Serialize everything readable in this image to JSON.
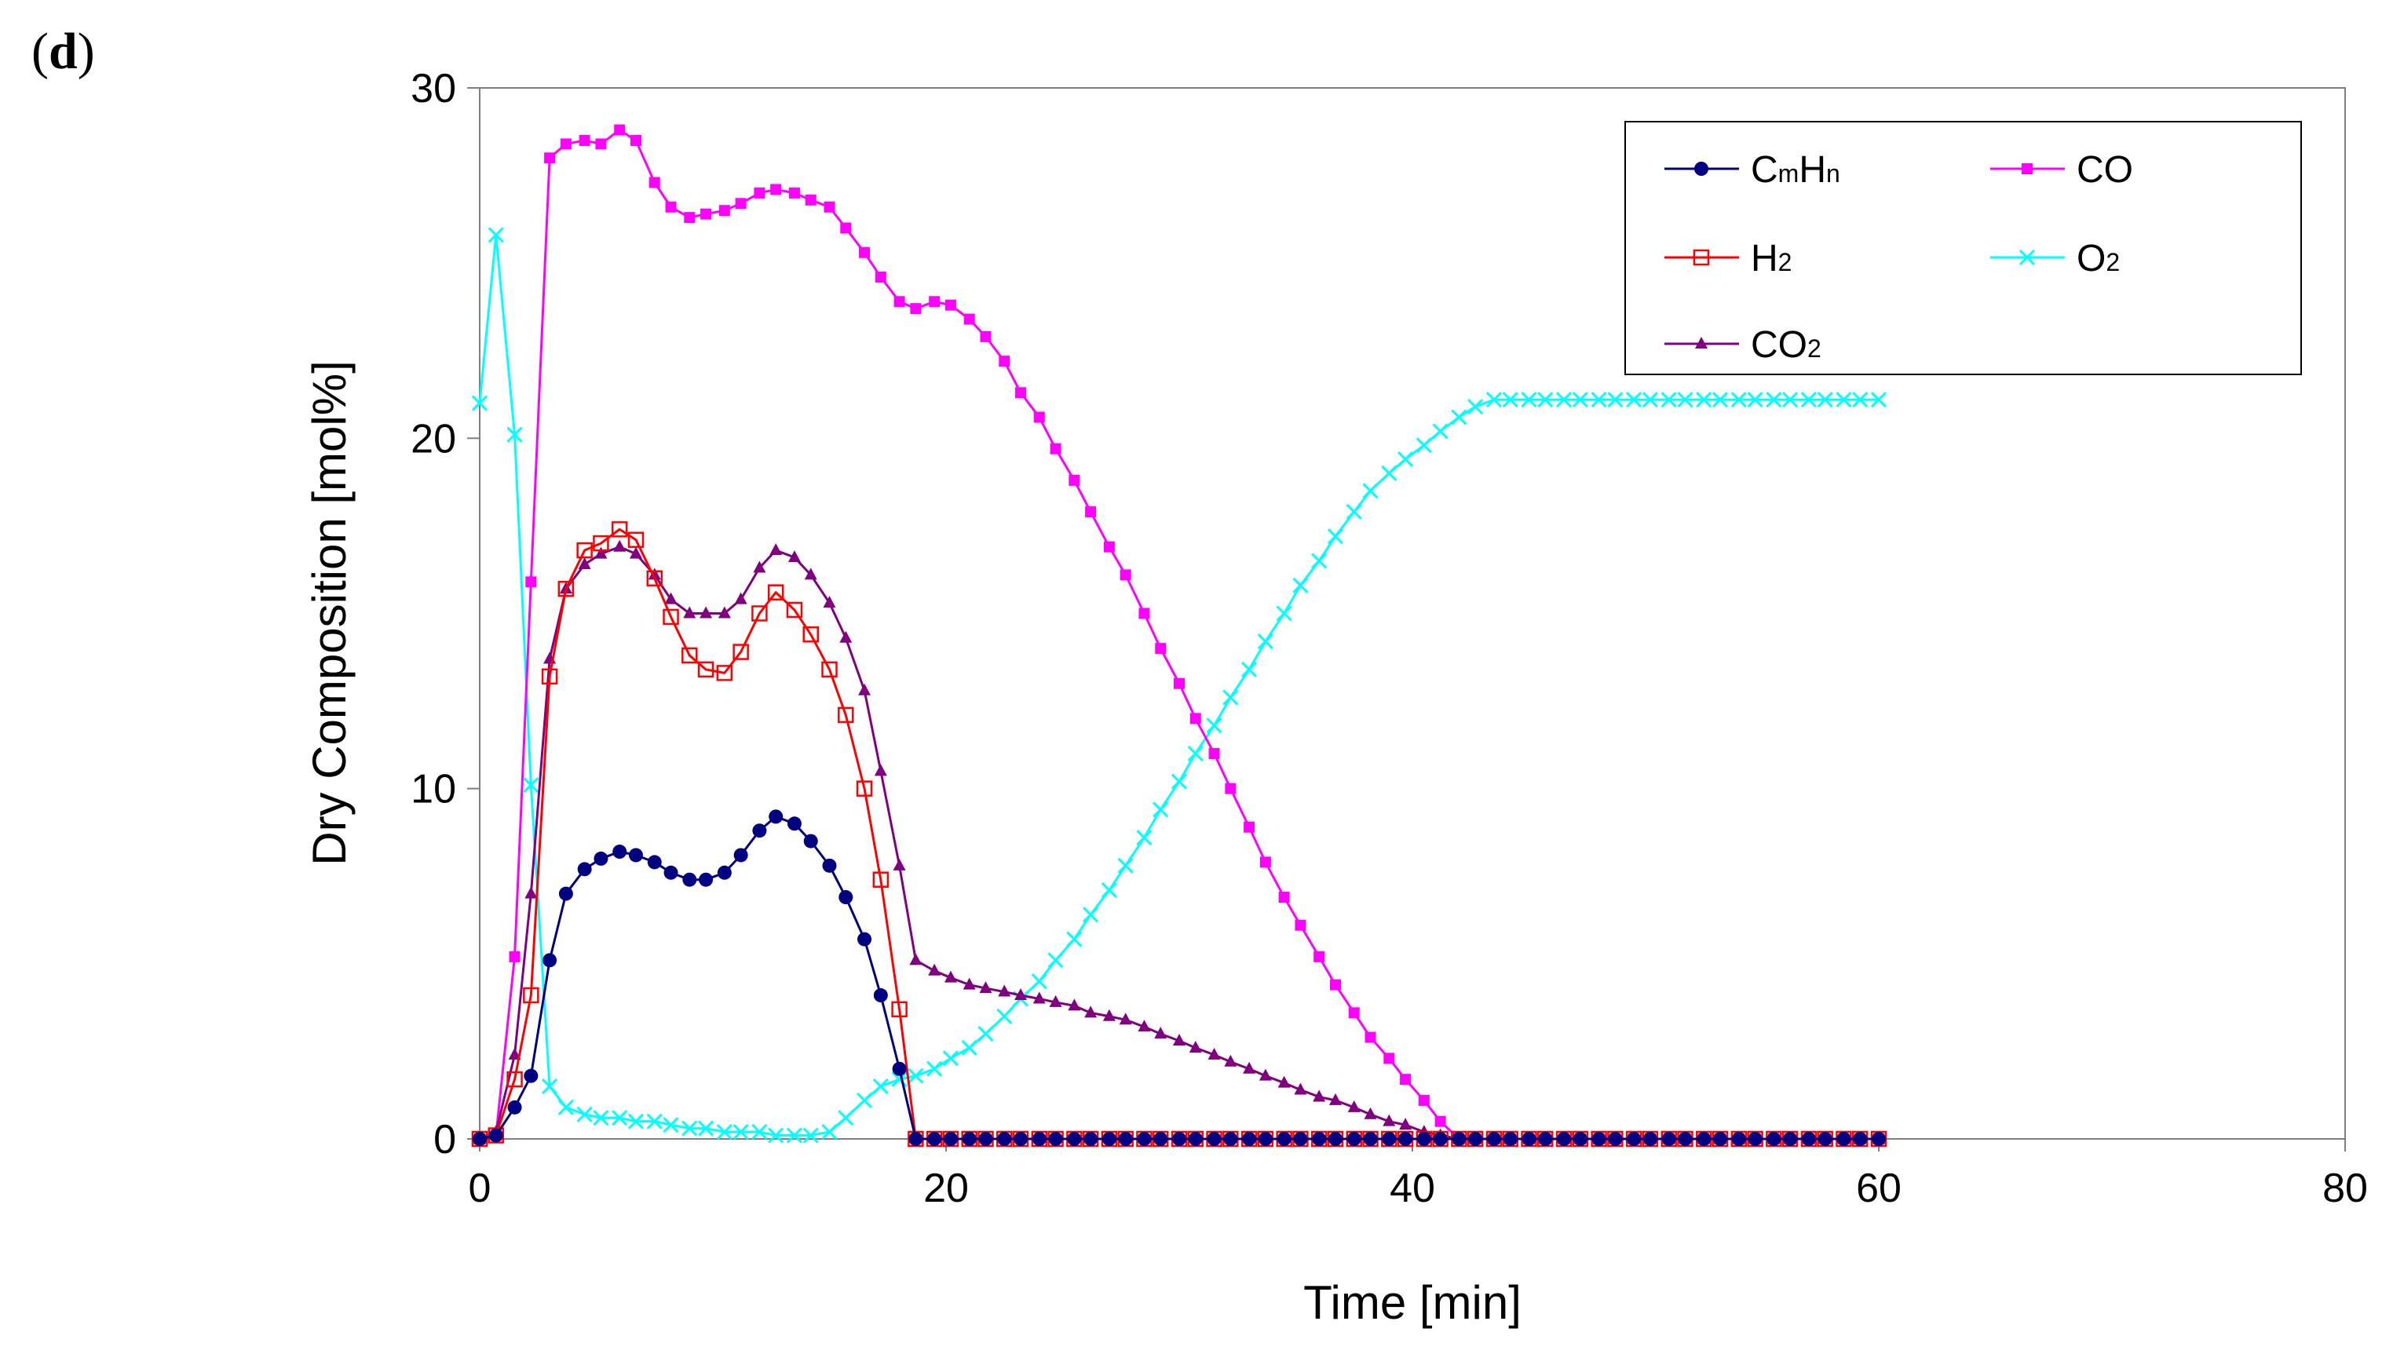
{
  "panel_label": {
    "open": "(",
    "letter": "d",
    "close": ")"
  },
  "chart_data": {
    "type": "line",
    "title": "",
    "xlabel": "Time [min]",
    "ylabel": "Dry Composition [mol%]",
    "xlim": [
      0,
      80
    ],
    "ylim": [
      0,
      30
    ],
    "xticks": [
      0,
      20,
      40,
      60,
      80
    ],
    "yticks": [
      0,
      10,
      20,
      30
    ],
    "x_tick_labels": [
      "0",
      "20",
      "40",
      "60",
      "80"
    ],
    "y_tick_labels": [
      "0",
      "10",
      "20",
      "30"
    ],
    "legend_position": "top-right",
    "grid": false,
    "series": [
      {
        "key": "cmhn",
        "name": "CmHn",
        "label_parts": [
          {
            "t": "C"
          },
          {
            "t": "m",
            "sub": true
          },
          {
            "t": "H"
          },
          {
            "t": "n",
            "sub": true
          }
        ],
        "color": "#000080",
        "marker": "circle",
        "x": [
          0,
          0.7,
          1.5,
          2.2,
          3,
          3.7,
          4.5,
          5.2,
          6,
          6.7,
          7.5,
          8.2,
          9,
          9.7,
          10.5,
          11.2,
          12,
          12.7,
          13.5,
          14.2,
          15,
          15.7,
          16.5,
          17.2,
          18,
          18.7,
          19.5,
          20.2,
          21,
          21.7,
          22.5,
          23.2,
          24,
          24.7,
          25.5,
          26.2,
          27,
          27.7,
          28.5,
          29.2,
          30,
          30.7,
          31.5,
          32.2,
          33,
          33.7,
          34.5,
          35.2,
          36,
          36.7,
          37.5,
          38.2,
          39,
          39.7,
          40.5,
          41.2,
          42,
          42.7,
          43.5,
          44.2,
          45,
          45.7,
          46.5,
          47.2,
          48,
          48.7,
          49.5,
          50.2,
          51,
          51.7,
          52.5,
          53.2,
          54,
          54.7,
          55.5,
          56.2,
          57,
          57.7,
          58.5,
          59.2,
          60
        ],
        "y": [
          0,
          0.1,
          0.9,
          1.8,
          5.1,
          7.0,
          7.7,
          8.0,
          8.2,
          8.1,
          7.9,
          7.6,
          7.4,
          7.4,
          7.6,
          8.1,
          8.8,
          9.2,
          9.0,
          8.5,
          7.8,
          6.9,
          5.7,
          4.1,
          2.0,
          0,
          0,
          0,
          0,
          0,
          0,
          0,
          0,
          0,
          0,
          0,
          0,
          0,
          0,
          0,
          0,
          0,
          0,
          0,
          0,
          0,
          0,
          0,
          0,
          0,
          0,
          0,
          0,
          0,
          0,
          0,
          0,
          0,
          0,
          0,
          0,
          0,
          0,
          0,
          0,
          0,
          0,
          0,
          0,
          0,
          0,
          0,
          0,
          0,
          0,
          0,
          0,
          0,
          0,
          0,
          0
        ]
      },
      {
        "key": "h2",
        "name": "H2",
        "label_parts": [
          {
            "t": "H"
          },
          {
            "t": "2",
            "sub": true
          }
        ],
        "color": "#ff0000",
        "marker": "open-square",
        "x": [
          0,
          0.7,
          1.5,
          2.2,
          3,
          3.7,
          4.5,
          5.2,
          6,
          6.7,
          7.5,
          8.2,
          9,
          9.7,
          10.5,
          11.2,
          12,
          12.7,
          13.5,
          14.2,
          15,
          15.7,
          16.5,
          17.2,
          18,
          18.7,
          19.5,
          20.2,
          21,
          21.7,
          22.5,
          23.2,
          24,
          24.7,
          25.5,
          26.2,
          27,
          27.7,
          28.5,
          29.2,
          30,
          30.7,
          31.5,
          32.2,
          33,
          33.7,
          34.5,
          35.2,
          36,
          36.7,
          37.5,
          38.2,
          39,
          39.7,
          40.5,
          41.2,
          42,
          42.7,
          43.5,
          44.2,
          45,
          45.7,
          46.5,
          47.2,
          48,
          48.7,
          49.5,
          50.2,
          51,
          51.7,
          52.5,
          53.2,
          54,
          54.7,
          55.5,
          56.2,
          57,
          57.7,
          58.5,
          59.2,
          60
        ],
        "y": [
          0,
          0.1,
          1.7,
          4.1,
          13.2,
          15.7,
          16.8,
          17.0,
          17.4,
          17.1,
          16.0,
          14.9,
          13.8,
          13.4,
          13.3,
          13.9,
          15.0,
          15.6,
          15.1,
          14.4,
          13.4,
          12.1,
          10.0,
          7.4,
          3.7,
          0,
          0,
          0,
          0,
          0,
          0,
          0,
          0,
          0,
          0,
          0,
          0,
          0,
          0,
          0,
          0,
          0,
          0,
          0,
          0,
          0,
          0,
          0,
          0,
          0,
          0,
          0,
          0,
          0,
          0,
          0,
          0,
          0,
          0,
          0,
          0,
          0,
          0,
          0,
          0,
          0,
          0,
          0,
          0,
          0,
          0,
          0,
          0,
          0,
          0,
          0,
          0,
          0,
          0,
          0,
          0
        ]
      },
      {
        "key": "co2",
        "name": "CO2",
        "label_parts": [
          {
            "t": "CO"
          },
          {
            "t": "2",
            "sub": true
          }
        ],
        "color": "#800080",
        "marker": "triangle",
        "x": [
          0,
          0.7,
          1.5,
          2.2,
          3,
          3.7,
          4.5,
          5.2,
          6,
          6.7,
          7.5,
          8.2,
          9,
          9.7,
          10.5,
          11.2,
          12,
          12.7,
          13.5,
          14.2,
          15,
          15.7,
          16.5,
          17.2,
          18,
          18.7,
          19.5,
          20.2,
          21,
          21.7,
          22.5,
          23.2,
          24,
          24.7,
          25.5,
          26.2,
          27,
          27.7,
          28.5,
          29.2,
          30,
          30.7,
          31.5,
          32.2,
          33,
          33.7,
          34.5,
          35.2,
          36,
          36.7,
          37.5,
          38.2,
          39,
          39.7,
          40.5,
          41.2,
          42,
          42.7,
          43.5,
          44.2,
          45,
          45.7,
          46.5,
          47.2,
          48,
          48.7,
          49.5,
          50.2,
          51,
          51.7,
          52.5,
          53.2,
          54,
          54.7,
          55.5,
          56.2,
          57,
          57.7,
          58.5,
          59.2,
          60
        ],
        "y": [
          0,
          0.2,
          2.4,
          7.0,
          13.7,
          15.7,
          16.4,
          16.7,
          16.9,
          16.7,
          16.1,
          15.4,
          15.0,
          15.0,
          15.0,
          15.4,
          16.3,
          16.8,
          16.6,
          16.1,
          15.3,
          14.3,
          12.8,
          10.5,
          7.8,
          5.1,
          4.8,
          4.6,
          4.4,
          4.3,
          4.2,
          4.1,
          4.0,
          3.9,
          3.8,
          3.6,
          3.5,
          3.4,
          3.2,
          3.0,
          2.8,
          2.6,
          2.4,
          2.2,
          2.0,
          1.8,
          1.6,
          1.4,
          1.2,
          1.1,
          0.9,
          0.7,
          0.5,
          0.4,
          0.2,
          0.1,
          0,
          0,
          0,
          0,
          0,
          0,
          0,
          0,
          0,
          0,
          0,
          0,
          0,
          0,
          0,
          0,
          0,
          0,
          0,
          0,
          0,
          0,
          0,
          0,
          0
        ]
      },
      {
        "key": "co",
        "name": "CO",
        "label_parts": [
          {
            "t": "CO"
          }
        ],
        "color": "#ff00ff",
        "marker": "filled-square",
        "x": [
          0,
          0.7,
          1.5,
          2.2,
          3,
          3.7,
          4.5,
          5.2,
          6,
          6.7,
          7.5,
          8.2,
          9,
          9.7,
          10.5,
          11.2,
          12,
          12.7,
          13.5,
          14.2,
          15,
          15.7,
          16.5,
          17.2,
          18,
          18.7,
          19.5,
          20.2,
          21,
          21.7,
          22.5,
          23.2,
          24,
          24.7,
          25.5,
          26.2,
          27,
          27.7,
          28.5,
          29.2,
          30,
          30.7,
          31.5,
          32.2,
          33,
          33.7,
          34.5,
          35.2,
          36,
          36.7,
          37.5,
          38.2,
          39,
          39.7,
          40.5,
          41.2,
          42,
          42.7,
          43.5,
          44.2,
          45,
          45.7,
          46.5,
          47.2,
          48,
          48.7,
          49.5,
          50.2,
          51,
          51.7,
          52.5,
          53.2,
          54,
          54.7,
          55.5,
          56.2,
          57,
          57.7,
          58.5,
          59.2,
          60
        ],
        "y": [
          0,
          0.1,
          5.2,
          15.9,
          28.0,
          28.4,
          28.5,
          28.4,
          28.8,
          28.5,
          27.3,
          26.6,
          26.3,
          26.4,
          26.5,
          26.7,
          27.0,
          27.1,
          27.0,
          26.8,
          26.6,
          26.0,
          25.3,
          24.6,
          23.9,
          23.7,
          23.9,
          23.8,
          23.4,
          22.9,
          22.2,
          21.3,
          20.6,
          19.7,
          18.8,
          17.9,
          16.9,
          16.1,
          15.0,
          14.0,
          13.0,
          12.0,
          11.0,
          10.0,
          8.9,
          7.9,
          6.9,
          6.1,
          5.2,
          4.4,
          3.6,
          2.9,
          2.3,
          1.7,
          1.1,
          0.5,
          0,
          0,
          0,
          0,
          0,
          0,
          0,
          0,
          0,
          0,
          0,
          0,
          0,
          0,
          0,
          0,
          0,
          0,
          0,
          0,
          0,
          0,
          0,
          0,
          0
        ]
      },
      {
        "key": "o2",
        "name": "O2",
        "label_parts": [
          {
            "t": "O"
          },
          {
            "t": "2",
            "sub": true
          }
        ],
        "color": "#00ffff",
        "marker": "x",
        "x": [
          0,
          0.7,
          1.5,
          2.2,
          3,
          3.7,
          4.5,
          5.2,
          6,
          6.7,
          7.5,
          8.2,
          9,
          9.7,
          10.5,
          11.2,
          12,
          12.7,
          13.5,
          14.2,
          15,
          15.7,
          16.5,
          17.2,
          18,
          18.7,
          19.5,
          20.2,
          21,
          21.7,
          22.5,
          23.2,
          24,
          24.7,
          25.5,
          26.2,
          27,
          27.7,
          28.5,
          29.2,
          30,
          30.7,
          31.5,
          32.2,
          33,
          33.7,
          34.5,
          35.2,
          36,
          36.7,
          37.5,
          38.2,
          39,
          39.7,
          40.5,
          41.2,
          42,
          42.7,
          43.5,
          44.2,
          45,
          45.7,
          46.5,
          47.2,
          48,
          48.7,
          49.5,
          50.2,
          51,
          51.7,
          52.5,
          53.2,
          54,
          54.7,
          55.5,
          56.2,
          57,
          57.7,
          58.5,
          59.2,
          60
        ],
        "y": [
          21.0,
          25.8,
          20.1,
          10.1,
          1.5,
          0.9,
          0.7,
          0.6,
          0.6,
          0.5,
          0.5,
          0.4,
          0.3,
          0.3,
          0.2,
          0.2,
          0.2,
          0.1,
          0.1,
          0.1,
          0.2,
          0.6,
          1.1,
          1.5,
          1.7,
          1.8,
          2.0,
          2.3,
          2.6,
          3.0,
          3.5,
          4.0,
          4.5,
          5.1,
          5.7,
          6.4,
          7.1,
          7.8,
          8.6,
          9.4,
          10.2,
          11.0,
          11.8,
          12.6,
          13.4,
          14.2,
          15.0,
          15.8,
          16.5,
          17.2,
          17.9,
          18.5,
          19.0,
          19.4,
          19.8,
          20.2,
          20.6,
          20.9,
          21.1,
          21.1,
          21.1,
          21.1,
          21.1,
          21.1,
          21.1,
          21.1,
          21.1,
          21.1,
          21.1,
          21.1,
          21.1,
          21.1,
          21.1,
          21.1,
          21.1,
          21.1,
          21.1,
          21.1,
          21.1,
          21.1,
          21.1
        ]
      }
    ],
    "legend_order": [
      "cmhn",
      "co",
      "h2",
      "o2",
      "co2"
    ]
  }
}
